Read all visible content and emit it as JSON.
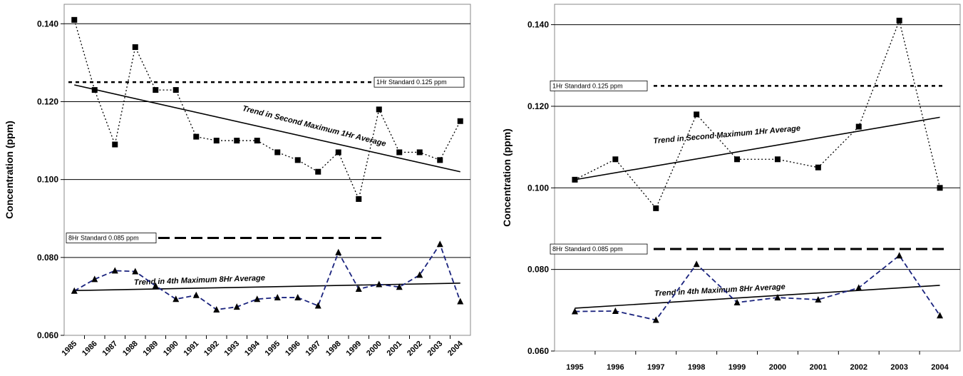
{
  "chart_data": [
    {
      "type": "line",
      "ylabel": "Concentration (ppm)",
      "ylim": [
        0.06,
        0.145
      ],
      "yticks": [
        "0.060",
        "0.080",
        "0.100",
        "0.120",
        "0.140"
      ],
      "grid": "horizontal",
      "categories": [
        "1985",
        "1986",
        "1987",
        "1988",
        "1989",
        "1990",
        "1991",
        "1992",
        "1993",
        "1994",
        "1995",
        "1996",
        "1997",
        "1998",
        "1999",
        "2000",
        "2001",
        "2002",
        "2003",
        "2004"
      ],
      "series": [
        {
          "values": [
            0.141,
            0.123,
            0.109,
            0.134,
            0.123,
            0.123,
            0.111,
            0.11,
            0.11,
            0.11,
            0.107,
            0.105,
            0.102,
            0.107,
            0.095,
            0.118,
            0.107,
            0.107,
            0.105,
            0.115
          ]
        },
        {
          "values": [
            0.0714,
            0.0744,
            0.0766,
            0.0764,
            0.0727,
            0.0693,
            0.0703,
            0.0666,
            0.0673,
            0.0693,
            0.0697,
            0.0697,
            0.0676,
            0.0813,
            0.0719,
            0.0731,
            0.0724,
            0.0755,
            0.0834,
            0.0687
          ]
        }
      ],
      "trend_lines": [
        {
          "label": "Trend in Second Maximum 1Hr Average",
          "start": 0.1243,
          "end": 0.102
        },
        {
          "label": "Trend in 4th Maximum 8Hr Average",
          "start": 0.0715,
          "end": 0.0734
        }
      ],
      "standards": [
        {
          "label": "1Hr Standard 0.125 ppm",
          "value": 0.125
        },
        {
          "label": "8Hr Standard 0.085 ppm",
          "value": 0.085
        }
      ]
    },
    {
      "type": "line",
      "ylabel": "Concentration (ppm)",
      "ylim": [
        0.06,
        0.145
      ],
      "yticks": [
        "0.060",
        "0.080",
        "0.100",
        "0.120",
        "0.140"
      ],
      "grid": "horizontal",
      "categories": [
        "1995",
        "1996",
        "1997",
        "1998",
        "1999",
        "2000",
        "2001",
        "2002",
        "2003",
        "2004"
      ],
      "series": [
        {
          "values": [
            0.102,
            0.107,
            0.095,
            0.118,
            0.107,
            0.107,
            0.105,
            0.115,
            0.141,
            0.1
          ]
        },
        {
          "values": [
            0.0697,
            0.0698,
            0.0676,
            0.0813,
            0.0719,
            0.0731,
            0.0726,
            0.0755,
            0.0834,
            0.0687
          ]
        }
      ],
      "trend_lines": [
        {
          "label": "Trend in Second Maximum 1Hr Average",
          "start": 0.102,
          "end": 0.1173
        },
        {
          "label": "Trend in 4th Maximum 8Hr Average",
          "start": 0.0705,
          "end": 0.0761
        }
      ],
      "standards": [
        {
          "label": "1Hr Standard 0.125 ppm",
          "value": 0.125
        },
        {
          "label": "8Hr Standard 0.085 ppm",
          "value": 0.085
        }
      ]
    }
  ]
}
